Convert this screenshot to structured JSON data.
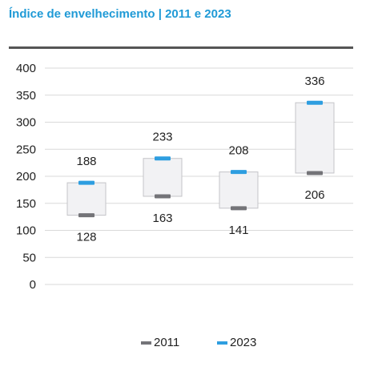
{
  "title": "Índice de envelhecimento | 2011 e 2023",
  "colors": {
    "title": "#1f9ad6",
    "rule": "#555555",
    "series_2011": "#747478",
    "series_2023": "#2e9ee0",
    "box_fill": "#f2f2f4",
    "box_stroke": "#c4c4c8",
    "grid": "#d9d9d9"
  },
  "chart_data": {
    "type": "range",
    "categories": [
      "",
      "",
      "",
      ""
    ],
    "series": [
      {
        "name": "2011",
        "values": [
          128,
          163,
          141,
          206
        ]
      },
      {
        "name": "2023",
        "values": [
          188,
          233,
          208,
          336
        ]
      }
    ],
    "ylim": [
      0,
      400
    ],
    "yticks": [
      0,
      50,
      100,
      150,
      200,
      250,
      300,
      350,
      400
    ],
    "grid": true,
    "legend": "bottom",
    "xlabel": "",
    "ylabel": ""
  }
}
